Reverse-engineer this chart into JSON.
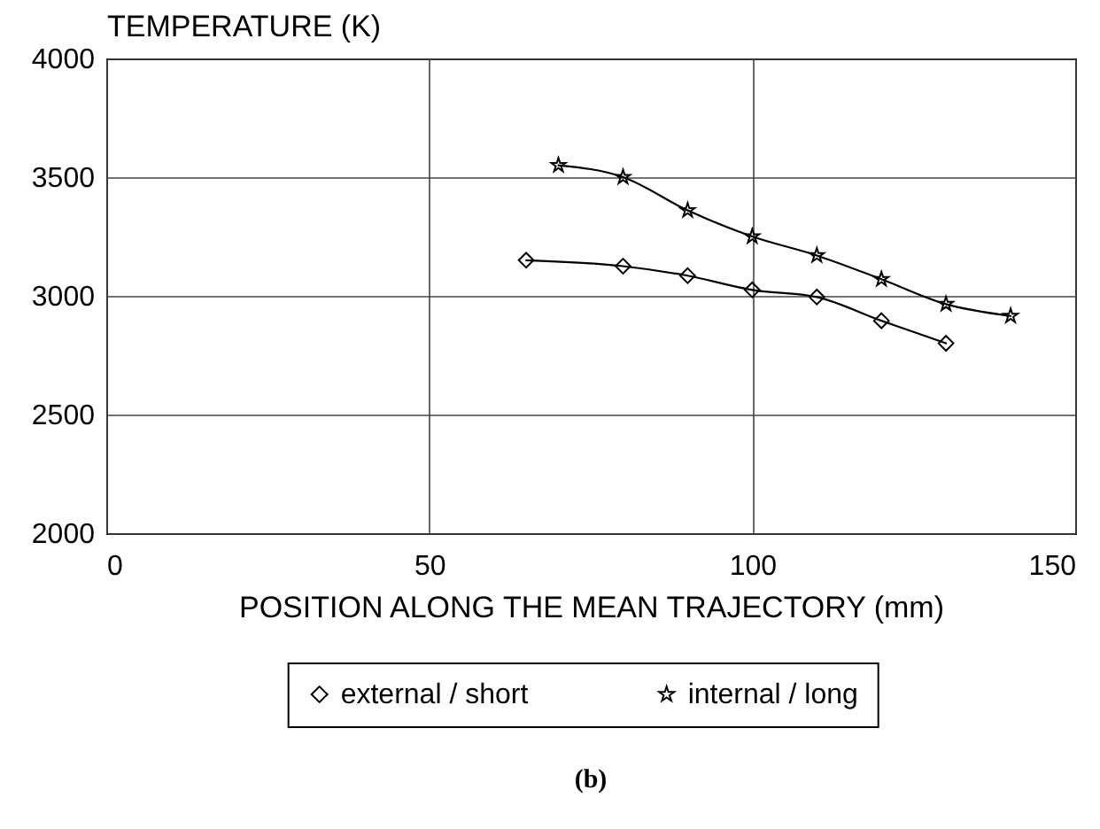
{
  "chart_data": {
    "type": "line",
    "xlabel": "POSITION ALONG THE MEAN TRAJECTORY (mm)",
    "ylabel": "TEMPERATURE (K)",
    "xlim": [
      0,
      150
    ],
    "xticks": [
      0,
      50,
      100,
      150
    ],
    "ylim": [
      2000,
      4000
    ],
    "yticks": [
      2000,
      2500,
      3000,
      3500,
      4000
    ],
    "grid": true,
    "legend": "bottom",
    "line_style": "solid",
    "annotations": [
      "(b)"
    ],
    "series": [
      {
        "name": "external / short",
        "color": "#000000",
        "marker": "diamond",
        "x": [
          65,
          80,
          90,
          100,
          110,
          120,
          130
        ],
        "values": [
          3150,
          3125,
          3085,
          3025,
          2995,
          2895,
          2800
        ]
      },
      {
        "name": "internal / long",
        "color": "#000000",
        "marker": "star",
        "x": [
          70,
          80,
          90,
          100,
          110,
          120,
          130,
          140
        ],
        "values": [
          3550,
          3500,
          3360,
          3250,
          3170,
          3070,
          2965,
          2915
        ]
      }
    ]
  }
}
